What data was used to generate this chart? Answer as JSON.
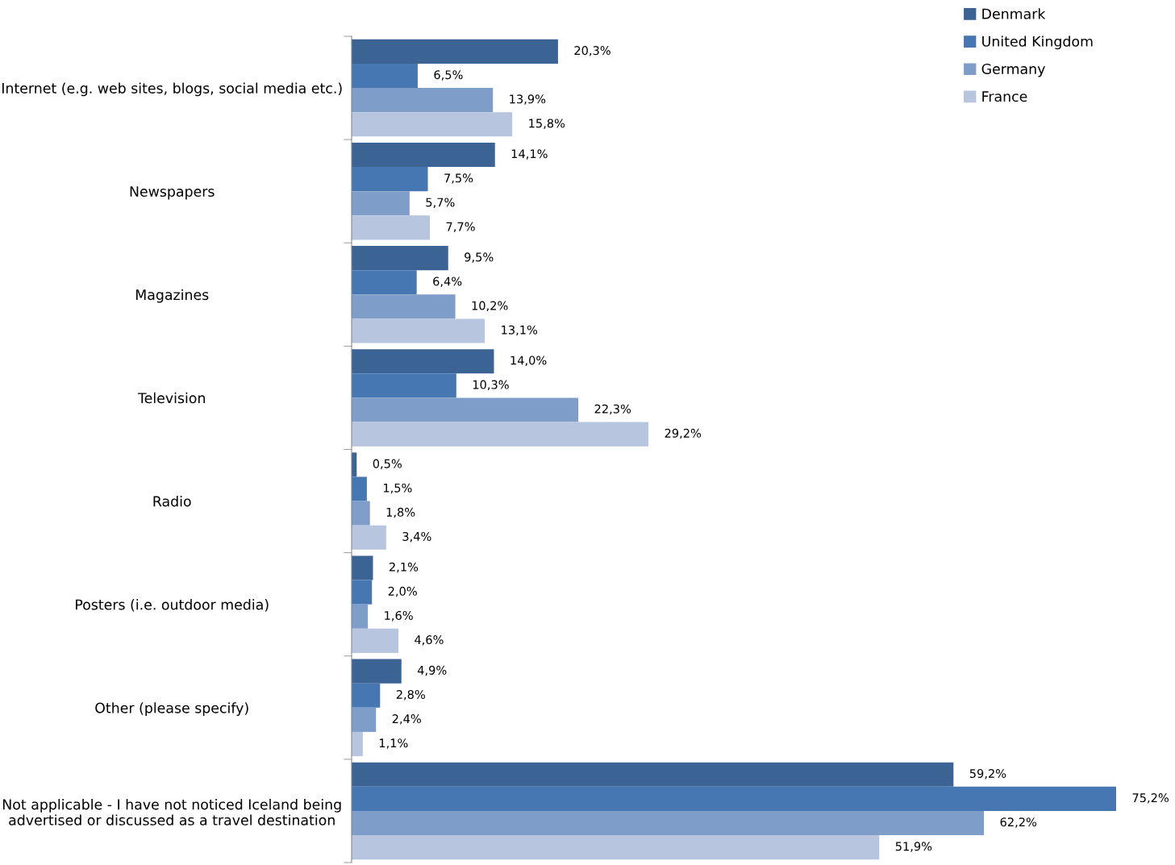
{
  "chart_data": {
    "type": "bar",
    "orientation": "horizontal",
    "legend": "top right",
    "categories": [
      "Internet (e.g. web sites, blogs, social media etc.)",
      "Newspapers",
      "Magazines",
      "Television",
      "Radio",
      "Posters (i.e. outdoor media)",
      "Other (please specify)",
      "Not applicable - I have not noticed Iceland being advertised or discussed as a travel destination"
    ],
    "series": [
      {
        "name": "Denmark",
        "color": "#3b6394",
        "values": [
          20.3,
          14.1,
          9.5,
          14.0,
          0.5,
          2.1,
          4.9,
          59.2
        ],
        "value_labels": [
          "20,3%",
          "14,1%",
          "9,5%",
          "14,0%",
          "0,5%",
          "2,1%",
          "4,9%",
          "59,2%"
        ]
      },
      {
        "name": "United Kingdom",
        "color": "#4677b3",
        "values": [
          6.5,
          7.5,
          6.4,
          10.3,
          1.5,
          2.0,
          2.8,
          75.2
        ],
        "value_labels": [
          "6,5%",
          "7,5%",
          "6,4%",
          "10,3%",
          "1,5%",
          "2,0%",
          "2,8%",
          "75,2%"
        ]
      },
      {
        "name": "Germany",
        "color": "#7f9dc9",
        "values": [
          13.9,
          5.7,
          10.2,
          22.3,
          1.8,
          1.6,
          2.4,
          62.2
        ],
        "value_labels": [
          "13,9%",
          "5,7%",
          "10,2%",
          "22,3%",
          "1,8%",
          "1,6%",
          "2,4%",
          "62,2%"
        ]
      },
      {
        "name": "France",
        "color": "#b7c5df",
        "values": [
          15.8,
          7.7,
          13.1,
          29.2,
          3.4,
          4.6,
          1.1,
          51.9
        ],
        "value_labels": [
          "15,8%",
          "7,7%",
          "13,1%",
          "29,2%",
          "3,4%",
          "4,6%",
          "1,1%",
          "51,9%"
        ]
      }
    ]
  }
}
